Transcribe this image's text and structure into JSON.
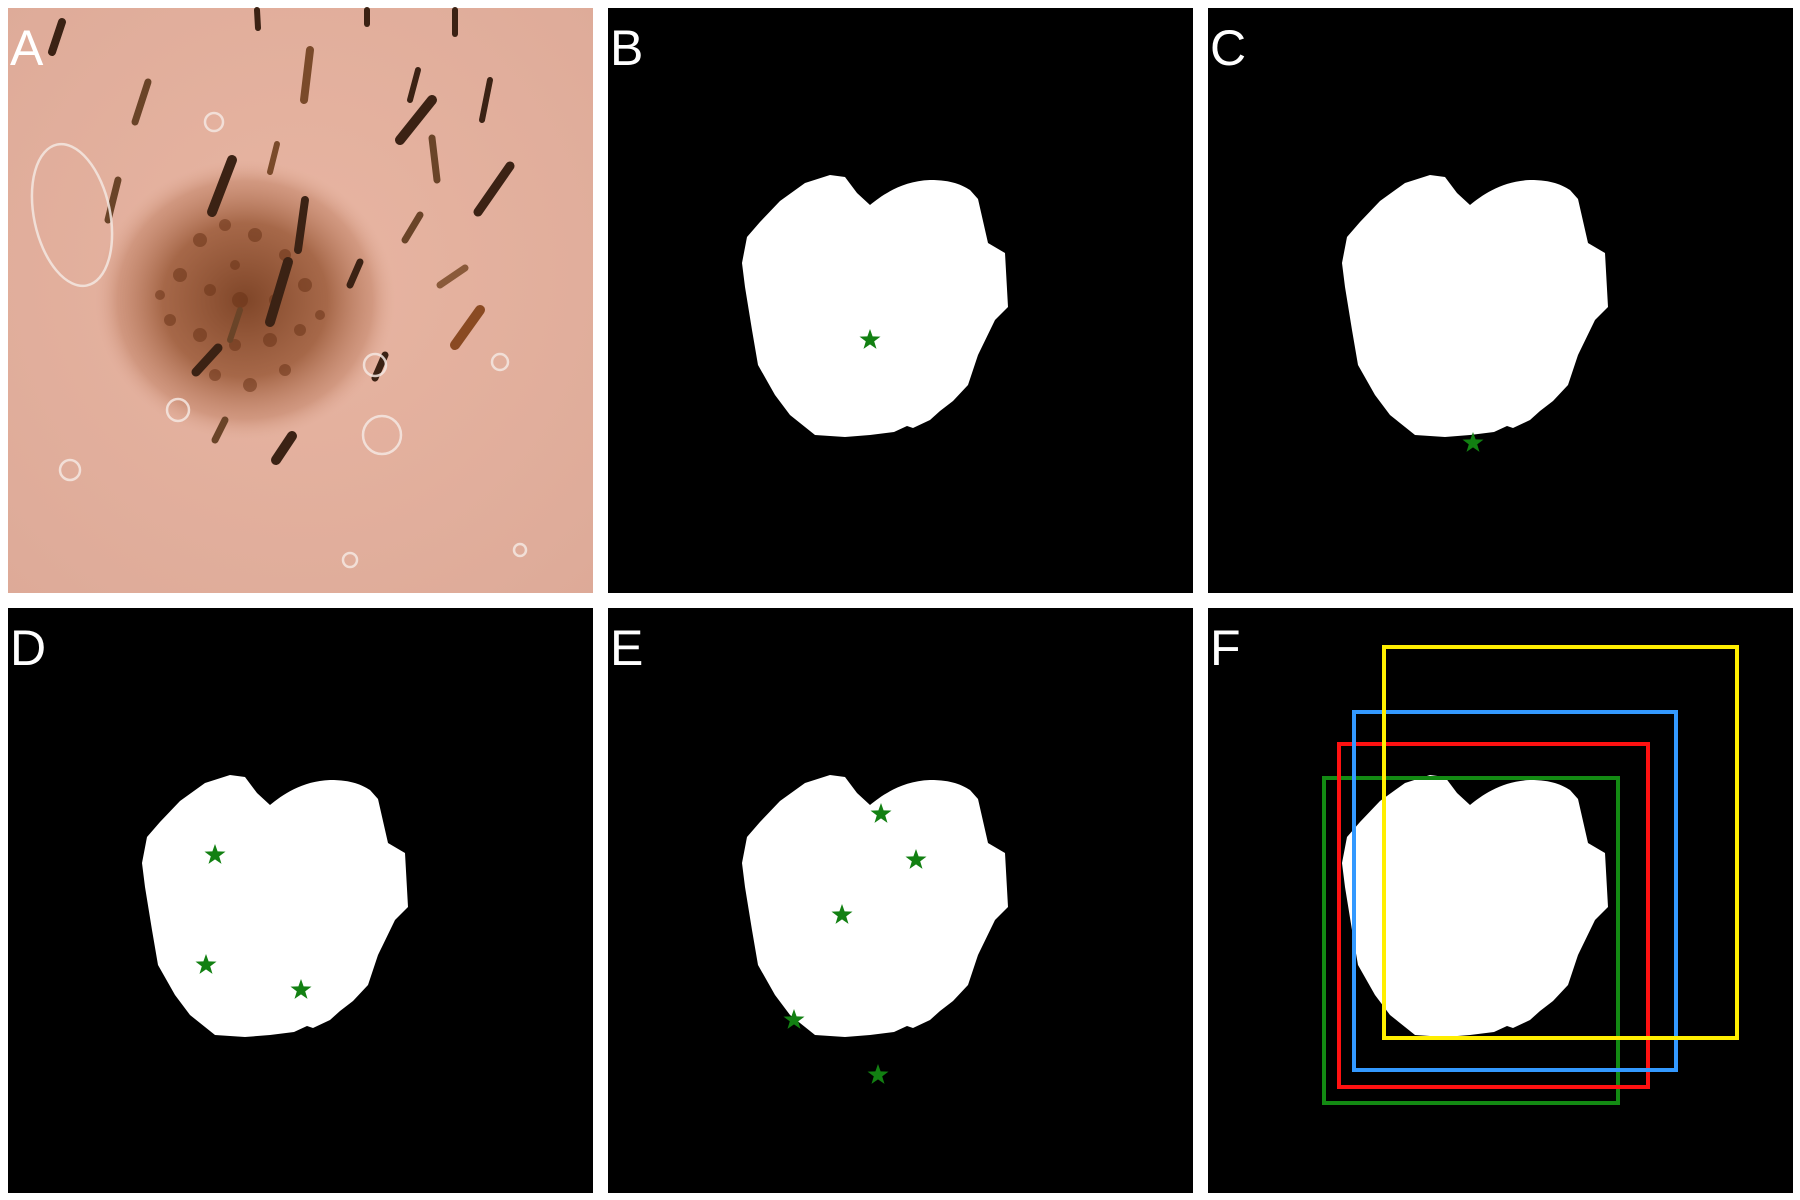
{
  "figure": {
    "background": "#ffffff",
    "panel_background": "#000000",
    "lesion_mask_color": "#ffffff",
    "star_color": "#128012",
    "panels": [
      {
        "id": "A",
        "label": "A",
        "content": "dermoscopy-photo"
      },
      {
        "id": "B",
        "label": "B",
        "content": "lesion-mask",
        "star_count": 1
      },
      {
        "id": "C",
        "label": "C",
        "content": "lesion-mask",
        "star_count": 1
      },
      {
        "id": "D",
        "label": "D",
        "content": "lesion-mask",
        "star_count": 3
      },
      {
        "id": "E",
        "label": "E",
        "content": "lesion-mask",
        "star_count": 5
      },
      {
        "id": "F",
        "label": "F",
        "content": "lesion-mask-with-boxes",
        "star_count": 0
      }
    ],
    "bounding_box_colors": [
      "#ffee00",
      "#3399ff",
      "#ff1111",
      "#138a13"
    ]
  }
}
